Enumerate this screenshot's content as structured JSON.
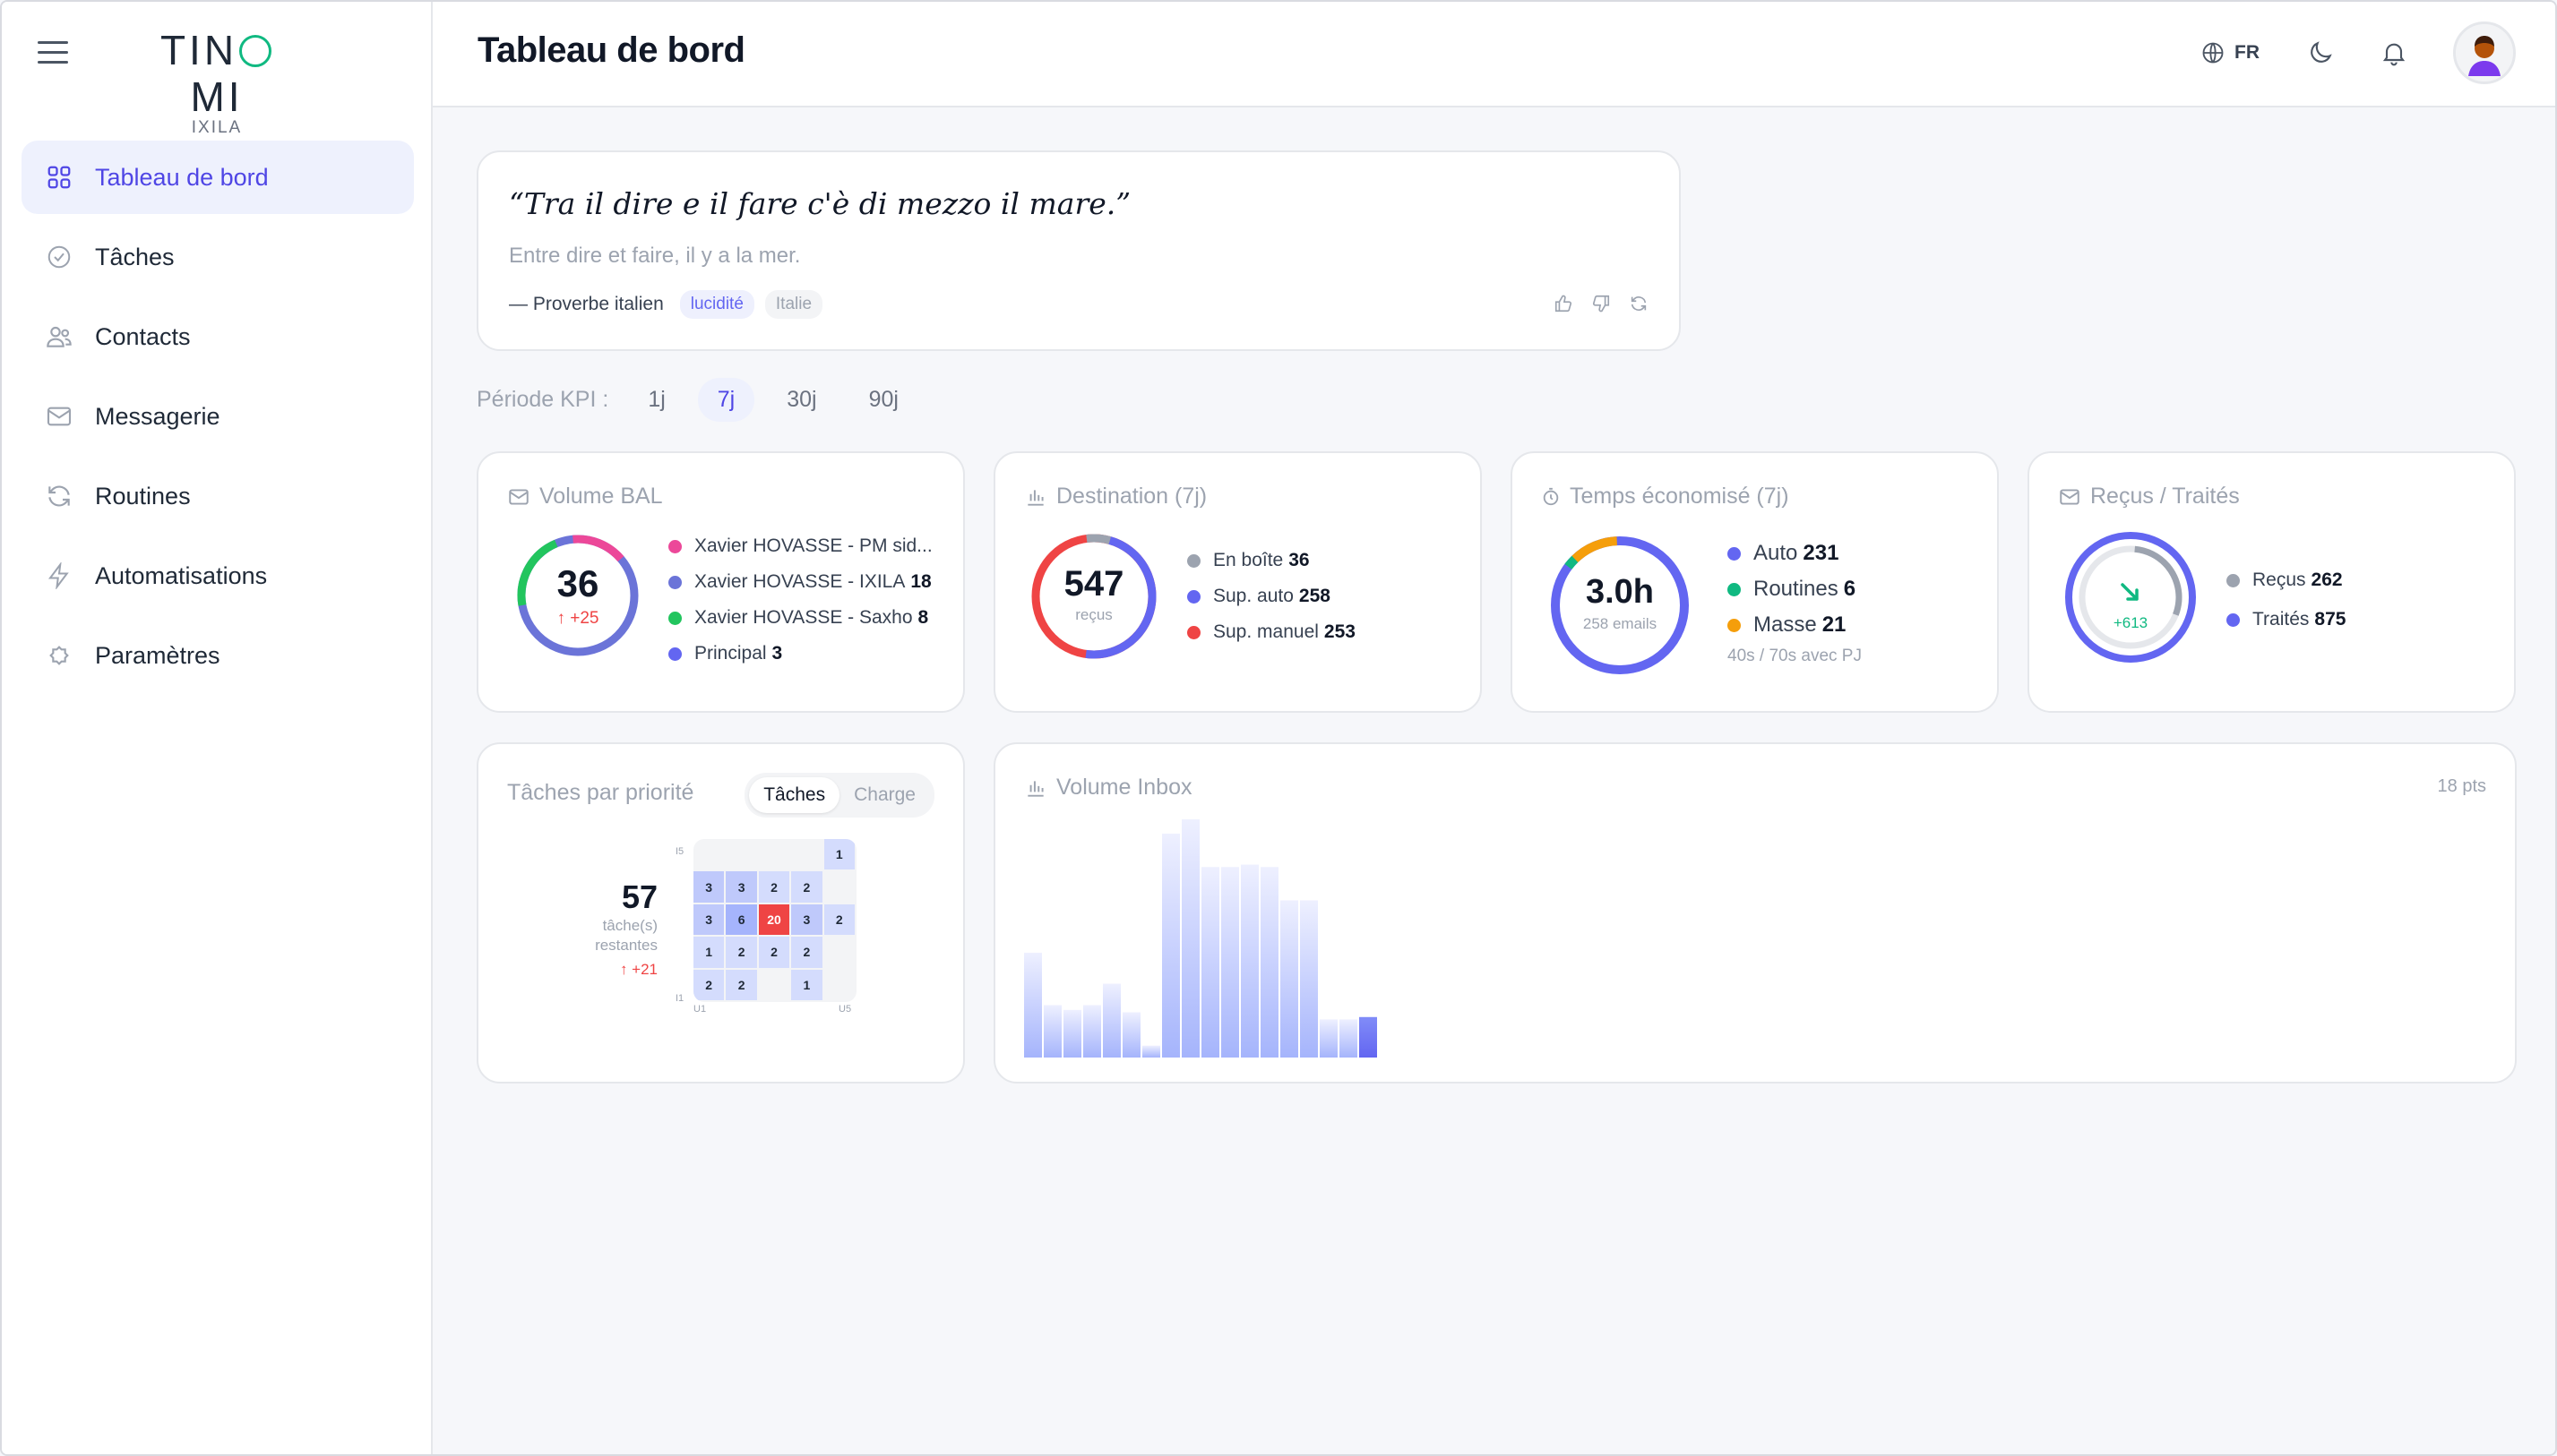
{
  "brand": {
    "name_left": "TIN",
    "name_right": "MI",
    "sub": "IXILA"
  },
  "sidebar": {
    "items": [
      {
        "label": "Tableau de bord",
        "icon": "grid-icon",
        "active": true
      },
      {
        "label": "Tâches",
        "icon": "check-circle-icon"
      },
      {
        "label": "Contacts",
        "icon": "users-icon"
      },
      {
        "label": "Messagerie",
        "icon": "mail-icon"
      },
      {
        "label": "Routines",
        "icon": "refresh-icon"
      },
      {
        "label": "Automatisations",
        "icon": "bolt-icon"
      },
      {
        "label": "Paramètres",
        "icon": "gear-icon"
      }
    ]
  },
  "header": {
    "title": "Tableau de bord",
    "lang": "FR"
  },
  "quote": {
    "text": "“Tra il dire e il fare c'è di mezzo il mare.”",
    "translation": "Entre dire et faire, il y a la mer.",
    "source": "— Proverbe italien",
    "tags": [
      "lucidité",
      "Italie"
    ]
  },
  "period": {
    "label": "Période KPI :",
    "options": [
      "1j",
      "7j",
      "30j",
      "90j"
    ],
    "selected": "7j"
  },
  "kpis": {
    "volume": {
      "title": "Volume BAL",
      "value": "36",
      "delta": "↑ +25",
      "legend": [
        {
          "label": "Xavier HOVASSE - PM sid...",
          "value": "",
          "color": "#ec4899"
        },
        {
          "label": "Xavier HOVASSE - IXILA",
          "value": "18",
          "color": "#6b74d8"
        },
        {
          "label": "Xavier HOVASSE - Saxho",
          "value": "8",
          "color": "#22c55e"
        },
        {
          "label": "Principal",
          "value": "3",
          "color": "#6366f1"
        }
      ]
    },
    "destination": {
      "title": "Destination (7j)",
      "value": "547",
      "sub": "reçus",
      "legend": [
        {
          "label": "En boîte",
          "value": "36",
          "color": "#9ca3af"
        },
        {
          "label": "Sup. auto",
          "value": "258",
          "color": "#6366f1"
        },
        {
          "label": "Sup. manuel",
          "value": "253",
          "color": "#ef4444"
        }
      ]
    },
    "time": {
      "title": "Temps économisé (7j)",
      "value": "3.0h",
      "sub": "258 emails",
      "legend": [
        {
          "label": "Auto",
          "value": "231",
          "color": "#6366f1"
        },
        {
          "label": "Routines",
          "value": "6",
          "color": "#10b981"
        },
        {
          "label": "Masse",
          "value": "21",
          "color": "#f59e0b"
        }
      ],
      "note": "40s / 70s avec PJ"
    },
    "received": {
      "title": "Reçus / Traités",
      "delta": "+613",
      "legend": [
        {
          "label": "Reçus",
          "value": "262",
          "color": "#9ca3af"
        },
        {
          "label": "Traités",
          "value": "875",
          "color": "#6366f1"
        }
      ]
    }
  },
  "priority": {
    "title": "Tâches par priorité",
    "tabs": [
      "Tâches",
      "Charge"
    ],
    "count": "57",
    "count_label_1": "tâche(s)",
    "count_label_2": "restantes",
    "delta": "↑ +21",
    "axis": {
      "y_top": "I5",
      "y_bottom": "I1",
      "x_left": "U1",
      "x_right": "U5"
    },
    "matrix": [
      [
        "",
        "",
        "",
        "",
        "1"
      ],
      [
        "3",
        "3",
        "2",
        "2",
        ""
      ],
      [
        "3",
        "6",
        "20",
        "3",
        "2"
      ],
      [
        "1",
        "2",
        "2",
        "2",
        ""
      ],
      [
        "2",
        "2",
        "",
        "1",
        ""
      ]
    ]
  },
  "inbox": {
    "title": "Volume Inbox",
    "count": "18 pts",
    "chart_data": {
      "type": "bar",
      "values": [
        44,
        22,
        20,
        22,
        31,
        19,
        5,
        94,
        100,
        80,
        80,
        81,
        80,
        66,
        66,
        16,
        16,
        17
      ],
      "highlight_last": true
    }
  }
}
